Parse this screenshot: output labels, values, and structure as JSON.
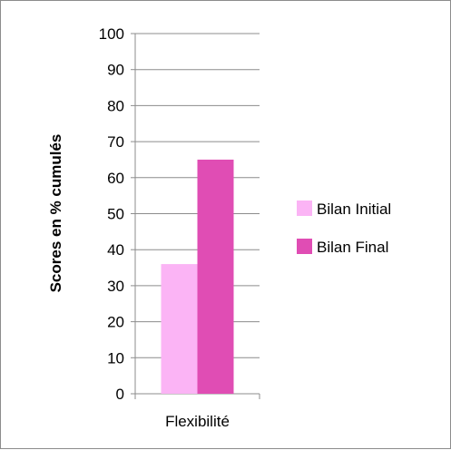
{
  "chart_data": {
    "type": "bar",
    "categories": [
      "Flexibilité"
    ],
    "series": [
      {
        "name": "Bilan Initial",
        "values": [
          36
        ],
        "color": "#fbb4f5"
      },
      {
        "name": "Bilan Final",
        "values": [
          65
        ],
        "color": "#e04db4"
      }
    ],
    "ylabel": "Scores en % cumulés",
    "xlabel": "",
    "ylim": [
      0,
      100
    ],
    "yticks": [
      0,
      10,
      20,
      30,
      40,
      50,
      60,
      70,
      80,
      90,
      100
    ],
    "grid": true,
    "legend_position": "right"
  }
}
